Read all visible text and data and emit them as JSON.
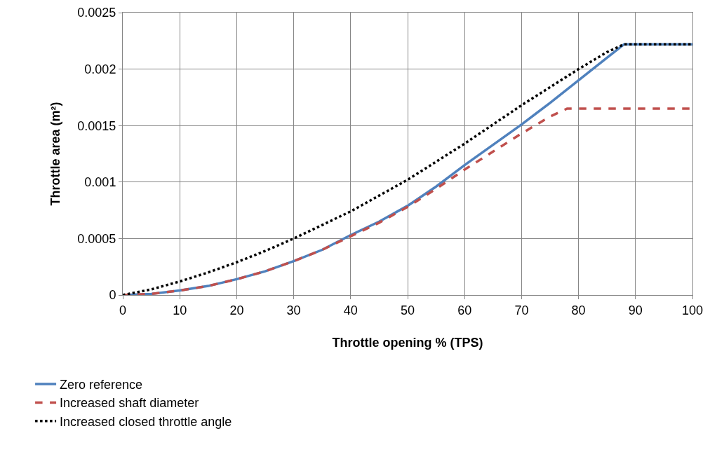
{
  "chart_data": {
    "type": "line",
    "xlabel": "Throttle opening % (TPS)",
    "ylabel": "Throttle area (m²)",
    "xlim": [
      0,
      100
    ],
    "xticks": [
      0,
      10,
      20,
      30,
      40,
      50,
      60,
      70,
      80,
      90,
      100
    ],
    "ylim": [
      0,
      0.0025
    ],
    "yticks": [
      0,
      0.0005,
      0.001,
      0.0015,
      0.002,
      0.0025
    ],
    "grid": true,
    "legend": "bottom left",
    "marker": "none",
    "series": [
      {
        "name": "Zero reference",
        "color": "#4f81bd",
        "line_style": "solid",
        "x": [
          0,
          5,
          10,
          15,
          20,
          25,
          30,
          35,
          40,
          45,
          50,
          55,
          60,
          65,
          70,
          75,
          80,
          85,
          88,
          90,
          100
        ],
        "values": [
          0,
          1e-05,
          4e-05,
          8e-05,
          0.00014,
          0.00021,
          0.0003,
          0.0004,
          0.00053,
          0.00065,
          0.00079,
          0.00096,
          0.00115,
          0.00133,
          0.00151,
          0.0017,
          0.0019,
          0.0021,
          0.00222,
          0.00222,
          0.00222
        ]
      },
      {
        "name": "Increased shaft diameter",
        "color": "#c0504d",
        "line_style": "dashed",
        "x": [
          0,
          5,
          10,
          15,
          20,
          25,
          30,
          35,
          40,
          45,
          50,
          55,
          60,
          65,
          70,
          75,
          78,
          80,
          90,
          100
        ],
        "values": [
          0,
          1e-05,
          4e-05,
          8e-05,
          0.00014,
          0.00021,
          0.0003,
          0.0004,
          0.00052,
          0.00064,
          0.00078,
          0.00094,
          0.00111,
          0.00127,
          0.00143,
          0.00158,
          0.00165,
          0.00165,
          0.00165,
          0.00165
        ]
      },
      {
        "name": "Increased closed throttle angle",
        "color": "#000000",
        "line_style": "dotted",
        "x": [
          0,
          5,
          10,
          15,
          20,
          25,
          30,
          35,
          40,
          45,
          50,
          55,
          60,
          65,
          70,
          75,
          80,
          85,
          88,
          90,
          100
        ],
        "values": [
          0,
          5e-05,
          0.00012,
          0.0002,
          0.00029,
          0.00039,
          0.0005,
          0.00062,
          0.00074,
          0.00088,
          0.00102,
          0.00118,
          0.00134,
          0.00151,
          0.00168,
          0.00184,
          0.002,
          0.00215,
          0.00222,
          0.00222,
          0.00222
        ]
      }
    ]
  }
}
